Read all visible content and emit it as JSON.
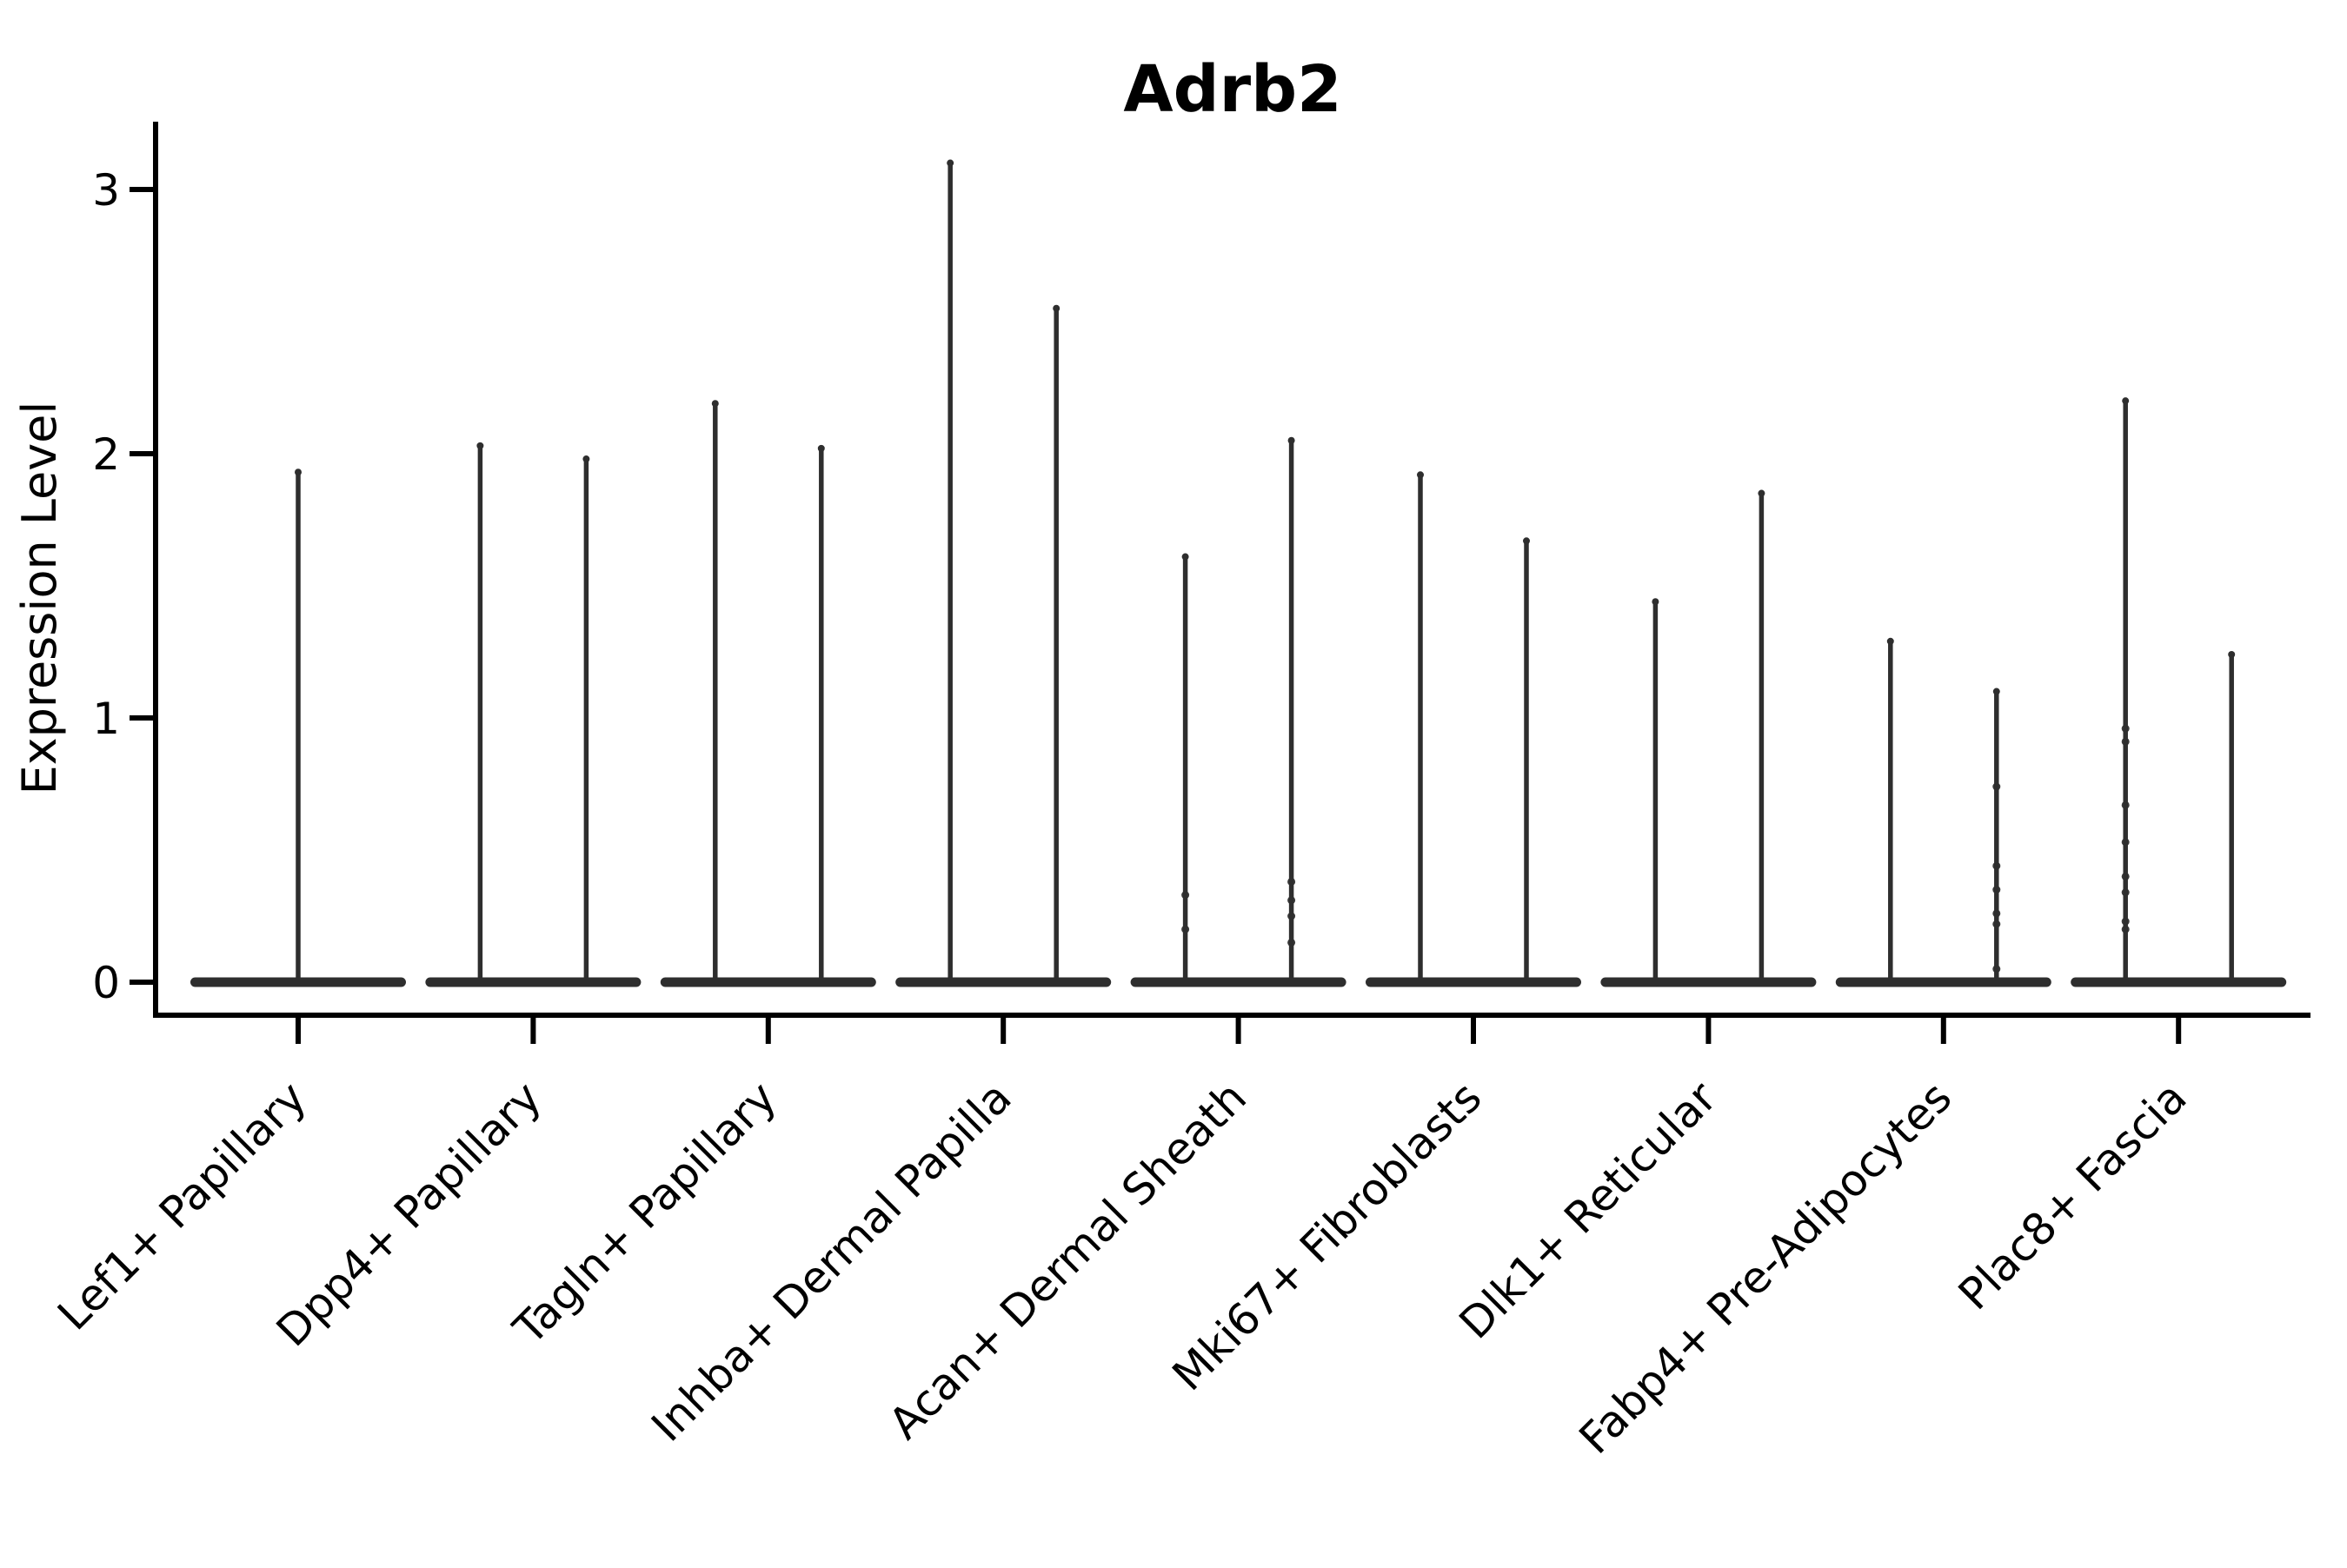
{
  "chart_data": {
    "type": "violin",
    "title": "Adrb2",
    "ylabel": "Expression Level",
    "xlabel": "",
    "yticks": [
      0,
      1,
      2,
      3
    ],
    "ylim": [
      -0.125,
      3.26
    ],
    "legend": "none",
    "grid": false,
    "categories": [
      "Lef1+ Papillary",
      "Dpp4+ Papillary",
      "Tagln+ Papillary",
      "Inhba+ Dermal Papilla",
      "Acan+ Dermal Sheath",
      "Mki67+ Fibroblasts",
      "Dlk1+ Reticular",
      "Fabp4+ Pre-Adipocytes",
      "Plac8+ Fascia"
    ],
    "violin_shape_note": "each violin is a wide flat base at 0 with a thin spike rising to its max expression value",
    "groups": [
      {
        "label": "Lef1+ Papillary",
        "violins": [
          {
            "max": 1.94,
            "points": []
          }
        ]
      },
      {
        "label": "Dpp4+ Papillary",
        "violins": [
          {
            "max": 2.04,
            "points": []
          },
          {
            "max": 1.99,
            "points": []
          }
        ]
      },
      {
        "label": "Tagln+ Papillary",
        "violins": [
          {
            "max": 2.2,
            "points": []
          },
          {
            "max": 2.03,
            "points": []
          }
        ]
      },
      {
        "label": "Inhba+ Dermal Papilla",
        "violins": [
          {
            "max": 3.11,
            "points": []
          },
          {
            "max": 2.56,
            "points": []
          }
        ]
      },
      {
        "label": "Acan+ Dermal Sheath",
        "violins": [
          {
            "max": 1.62,
            "points": [
              0.33,
              0.2
            ]
          },
          {
            "max": 2.06,
            "points": [
              0.38,
              0.31,
              0.25,
              0.15
            ]
          }
        ]
      },
      {
        "label": "Mki67+ Fibroblasts",
        "violins": [
          {
            "max": 1.93,
            "points": []
          },
          {
            "max": 1.68,
            "points": []
          }
        ]
      },
      {
        "label": "Dlk1+ Reticular",
        "violins": [
          {
            "max": 1.45,
            "points": []
          },
          {
            "max": 1.86,
            "points": []
          }
        ]
      },
      {
        "label": "Fabp4+ Pre-Adipocytes",
        "violins": [
          {
            "max": 1.3,
            "points": []
          },
          {
            "max": 1.11,
            "points": [
              0.74,
              0.44,
              0.35,
              0.26,
              0.22,
              0.05
            ]
          }
        ]
      },
      {
        "label": "Plac8+ Fascia",
        "violins": [
          {
            "max": 2.21,
            "points": [
              0.96,
              0.91,
              0.67,
              0.53,
              0.4,
              0.34,
              0.23,
              0.2
            ]
          },
          {
            "max": 1.25,
            "points": []
          }
        ]
      }
    ],
    "colors": {
      "violin": "#2e2e2e",
      "axis": "#000000",
      "text": "#000000",
      "background": "#ffffff"
    }
  }
}
